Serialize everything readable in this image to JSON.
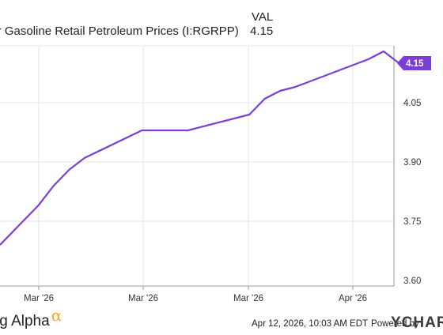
{
  "header": {
    "series_label": "lar Gasoline Retail Petroleum Prices (I:RGRPP)",
    "val_header": "VAL",
    "val_value": "4.15"
  },
  "chart_data": {
    "type": "line",
    "title": "",
    "xlabel": "",
    "ylabel": "",
    "ylim": [
      3.6,
      4.2
    ],
    "yticks": [
      3.6,
      3.75,
      3.9,
      4.05
    ],
    "ytick_labels": [
      "3.60",
      "3.75",
      "3.90",
      "4.05"
    ],
    "xtick_labels": [
      "Mar '26",
      "Mar '26",
      "Mar '26",
      "Apr '26"
    ],
    "grid": true,
    "line_color": "#7b3fd3",
    "last_value_label": "4.15",
    "series": [
      {
        "values": [
          3.69,
          3.79,
          3.84,
          3.88,
          3.91,
          3.98,
          3.98,
          4.02,
          4.06,
          4.08,
          4.09,
          4.16,
          4.17,
          4.18,
          4.15
        ],
        "x_frac": [
          0.0,
          0.1,
          0.14,
          0.18,
          0.22,
          0.37,
          0.49,
          0.65,
          0.69,
          0.73,
          0.77,
          0.96,
          0.98,
          1.0,
          1.04
        ]
      }
    ]
  },
  "footer": {
    "brand_name": "king Alpha",
    "brand_alpha": "α",
    "date": "Apr 12, 2026, 10:03 AM EDT",
    "powered_by": "Powered by",
    "ycharts": "YCHAR"
  }
}
